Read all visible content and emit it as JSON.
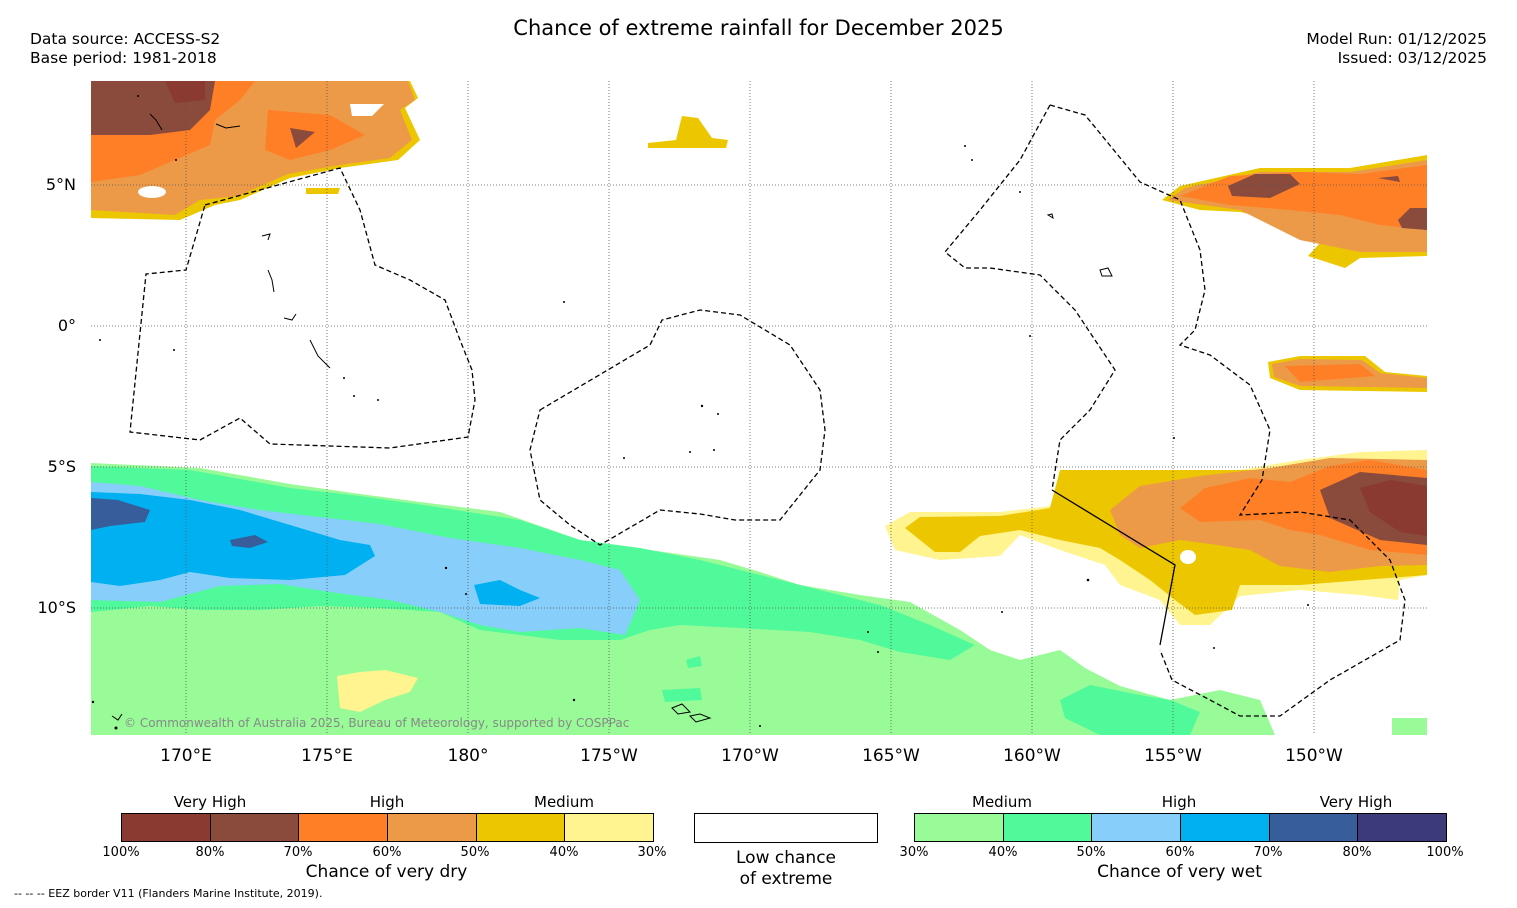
{
  "title": "Chance of extreme rainfall for December 2025",
  "header": {
    "data_source": "Data source: ACCESS-S2",
    "base_period": "Base period: 1981-2018",
    "model_run": "Model Run: 01/12/2025",
    "issued": "Issued: 03/12/2025"
  },
  "map": {
    "lat_labels": [
      "5°N",
      "0°",
      "5°S",
      "10°S"
    ],
    "lon_labels": [
      "170°E",
      "175°E",
      "180°",
      "175°W",
      "170°W",
      "165°W",
      "160°W",
      "155°W",
      "150°W"
    ],
    "copyright": "© Commonwealth of Australia 2025, Bureau of Meteorology, supported by COSPPac"
  },
  "legend_dry": {
    "levels": [
      "Very High",
      "High",
      "Medium"
    ],
    "ticks": [
      "100%",
      "80%",
      "70%",
      "60%",
      "50%",
      "40%",
      "30%"
    ],
    "caption": "Chance of very dry",
    "colors": [
      "#8b3a31",
      "#8a4a3c",
      "#ff7f27",
      "#ed9a48",
      "#ecc700",
      "#fff48f"
    ]
  },
  "legend_low": {
    "caption_line1": "Low chance",
    "caption_line2": "of extreme"
  },
  "legend_wet": {
    "levels": [
      "Medium",
      "High",
      "Very High"
    ],
    "ticks": [
      "30%",
      "40%",
      "50%",
      "60%",
      "70%",
      "80%",
      "100%"
    ],
    "caption": "Chance of very wet",
    "colors": [
      "#98fb98",
      "#50fa9b",
      "#87cefa",
      "#00b0f0",
      "#375e9a",
      "#3c3a78"
    ]
  },
  "footer": "--  --  -- EEZ border V11 (Flanders Marine Institute, 2019)."
}
